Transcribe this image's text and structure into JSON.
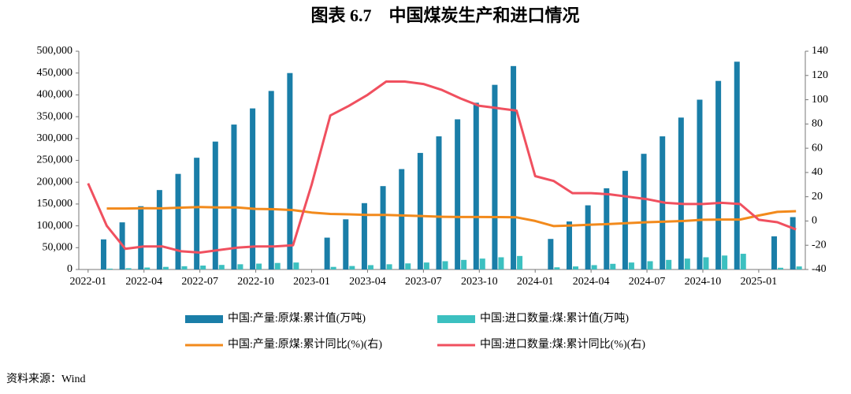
{
  "chart_data": {
    "type": "bar-line",
    "title": "图表 6.7　中国煤炭生产和进口情况",
    "source": "资料来源：Wind",
    "categories": [
      "2022-01",
      null,
      null,
      "2022-04",
      null,
      null,
      "2022-07",
      null,
      null,
      "2022-10",
      null,
      null,
      "2023-01",
      null,
      null,
      "2023-04",
      null,
      null,
      "2023-07",
      null,
      null,
      "2023-10",
      null,
      null,
      "2024-01",
      null,
      null,
      "2024-04",
      null,
      null,
      "2024-07",
      null,
      null,
      "2024-10",
      null,
      null,
      "2025-01",
      null,
      null
    ],
    "ylim": [
      0,
      500000
    ],
    "yticks": [
      0,
      {
        "value": 50000,
        "label": "50,000"
      },
      {
        "value": 100000,
        "label": "100,000"
      },
      {
        "value": 150000,
        "label": "150,000"
      },
      {
        "value": 200000,
        "label": "200,000"
      },
      {
        "value": 250000,
        "label": "250,000"
      },
      {
        "value": 300000,
        "label": "300,000"
      },
      {
        "value": 350000,
        "label": "350,000"
      },
      {
        "value": 400000,
        "label": "400,000"
      },
      {
        "value": 450000,
        "label": "450,000"
      },
      {
        "value": 500000,
        "label": "500,000"
      }
    ],
    "y2lim": [
      -40,
      140
    ],
    "y2ticks": [
      -40,
      -20,
      0,
      20,
      40,
      60,
      80,
      100,
      120,
      140
    ],
    "series": [
      {
        "name": "中国:产量:原煤:累计值(万吨)",
        "type": "bar",
        "color": "#1a7ea8",
        "values": [
          null,
          69000,
          108000,
          145000,
          182000,
          219000,
          256000,
          293000,
          332000,
          369000,
          409000,
          450000,
          null,
          73000,
          115000,
          152000,
          191000,
          230000,
          267000,
          305000,
          344000,
          382000,
          423000,
          466000,
          null,
          70000,
          110000,
          147000,
          186000,
          226000,
          265000,
          305000,
          348000,
          389000,
          432000,
          476000,
          null,
          76000,
          120000
        ]
      },
      {
        "name": "中国:进口数量:煤:累计值(万吨)",
        "type": "bar",
        "color": "#3cc0c0",
        "values": [
          null,
          2000,
          3000,
          4500,
          6000,
          7500,
          9000,
          10500,
          12000,
          13500,
          15000,
          16000,
          null,
          6000,
          8000,
          10000,
          12000,
          14000,
          16000,
          19000,
          22000,
          25000,
          28000,
          31000,
          null,
          5000,
          7000,
          10000,
          13000,
          16000,
          19000,
          22000,
          25000,
          28000,
          32000,
          36000,
          null,
          4000,
          7000
        ]
      },
      {
        "name": "中国:产量:原煤:累计同比(%)(右)",
        "type": "line",
        "axis": "y2",
        "color": "#f28a1c",
        "values": [
          null,
          10.3,
          10.3,
          10.5,
          10.4,
          11.0,
          11.5,
          11.2,
          11.2,
          10.0,
          9.7,
          9.0,
          7.0,
          5.8,
          5.5,
          5.0,
          5.0,
          4.5,
          4.0,
          3.5,
          3.3,
          3.3,
          3.2,
          3.0,
          0.0,
          -4.2,
          -3.7,
          -3.0,
          -2.5,
          -1.7,
          -1.0,
          -0.5,
          0.0,
          1.0,
          1.2,
          1.2,
          4.5,
          7.5,
          8.1
        ]
      },
      {
        "name": "中国:进口数量:煤:累计同比(%)(右)",
        "type": "line",
        "axis": "y2",
        "color": "#f0505f",
        "values": [
          31,
          -4,
          -23,
          -21,
          -21,
          -25,
          -26,
          -24,
          -22,
          -21,
          -21,
          -20,
          30,
          87,
          95,
          104,
          115,
          115,
          113,
          108,
          101,
          95,
          93,
          91,
          37,
          33,
          23,
          23,
          22,
          20,
          18,
          15,
          14,
          14,
          15,
          14,
          1,
          -1,
          -7
        ]
      }
    ]
  }
}
